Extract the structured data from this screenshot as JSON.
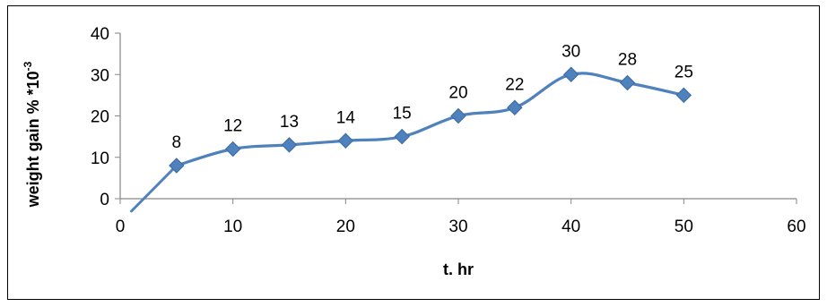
{
  "chart_data": {
    "type": "line",
    "title": "",
    "xlabel": "t. hr",
    "ylabel": "weight gain %  *10",
    "ylabel_superscript": "-3",
    "xlim": [
      0,
      60
    ],
    "ylim": [
      0,
      40
    ],
    "x_ticks": [
      "0",
      "10",
      "20",
      "30",
      "40",
      "50",
      "60"
    ],
    "y_ticks": [
      "0",
      "10",
      "20",
      "30",
      "40"
    ],
    "grid": false,
    "legend": "none",
    "series": [
      {
        "color": "#4F81BD",
        "marker": "diamond",
        "smooth": true,
        "trendline_start": [
          1,
          -3
        ],
        "x": [
          5,
          10,
          15,
          20,
          25,
          30,
          35,
          40,
          45,
          50
        ],
        "y": [
          8,
          12,
          13,
          14,
          15,
          20,
          22,
          30,
          28,
          25
        ],
        "data_labels": [
          "8",
          "12",
          "13",
          "14",
          "15",
          "20",
          "22",
          "30",
          "28",
          "25"
        ]
      }
    ]
  }
}
